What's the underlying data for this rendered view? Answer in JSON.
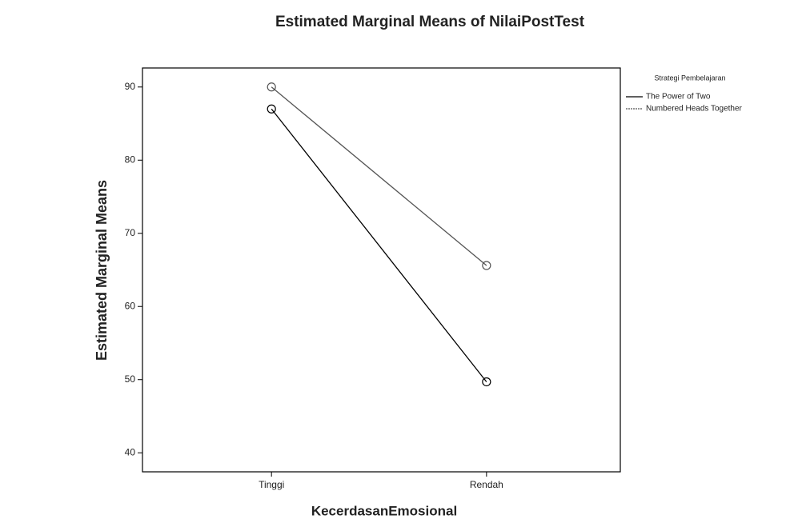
{
  "chart_data": {
    "type": "line",
    "title": "Estimated Marginal Means of NilaiPostTest",
    "x_label": "KecerdasanEmosional",
    "y_label": "Estimated Marginal Means",
    "categories": [
      "Tinggi",
      "Rendah"
    ],
    "legend_title": "Strategi Pembelajaran",
    "legend_position": "right",
    "series": [
      {
        "name": "The Power of Two",
        "color": "#000000",
        "values": [
          87,
          49.7
        ]
      },
      {
        "name": "Numbered Heads Together",
        "color": "#555555",
        "values": [
          90,
          65.6
        ]
      }
    ],
    "ylim": [
      37.4,
      92.6
    ],
    "yticks": [
      40,
      50,
      60,
      70,
      80,
      90
    ]
  }
}
